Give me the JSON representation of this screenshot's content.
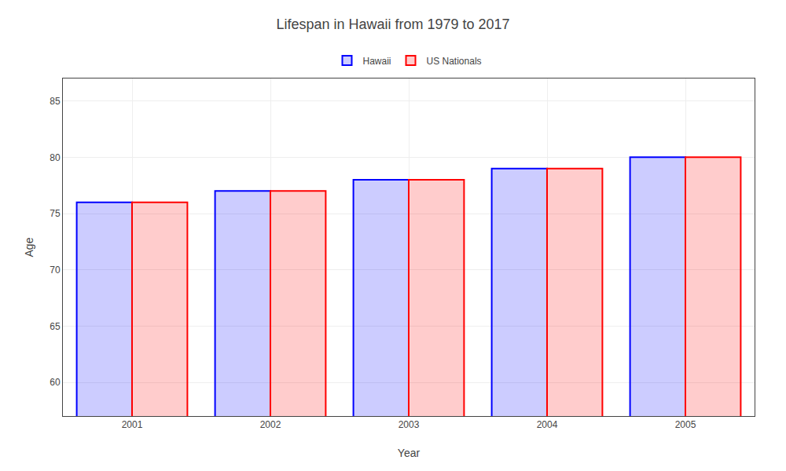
{
  "chart_data": {
    "type": "bar",
    "title": "Lifespan in Hawaii from 1979 to 2017",
    "xlabel": "Year",
    "ylabel": "Age",
    "categories": [
      "2001",
      "2002",
      "2003",
      "2004",
      "2005"
    ],
    "series": [
      {
        "name": "Hawaii",
        "color": "#0000ff",
        "values": [
          76.0,
          77.0,
          78.0,
          79.0,
          80.0
        ]
      },
      {
        "name": "US Nationals",
        "color": "#ff0000",
        "values": [
          76.0,
          77.0,
          78.0,
          79.0,
          80.0
        ]
      }
    ],
    "ylim": [
      57,
      87
    ],
    "yticks": [
      60,
      65,
      70,
      75,
      80,
      85
    ],
    "grid": true,
    "legend": "upper center"
  }
}
